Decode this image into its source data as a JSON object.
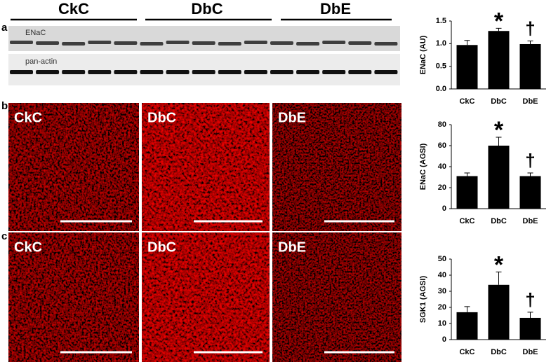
{
  "figure": {
    "panel_labels": [
      "a",
      "b",
      "c"
    ],
    "blot": {
      "groups": [
        "CkC",
        "DbC",
        "DbE"
      ],
      "bands": [
        "ENaC",
        "pan-actin"
      ]
    },
    "micrographs": [
      [
        "CkC",
        "DbC",
        "DbE"
      ],
      [
        "CkC",
        "DbC",
        "DbE"
      ]
    ]
  },
  "chart_data": [
    {
      "type": "bar",
      "y_label": "ENaC (AU)",
      "categories": [
        "CkC",
        "DbC",
        "DbE"
      ],
      "values": [
        0.97,
        1.28,
        0.99
      ],
      "errors": [
        0.1,
        0.06,
        0.07
      ],
      "color": "#000000",
      "ylim": [
        0,
        1.5
      ],
      "yticks": [
        {
          "value": 0,
          "label": "0.0"
        },
        {
          "value": 0.5,
          "label": "0.5"
        },
        {
          "value": 1,
          "label": "1.0"
        },
        {
          "value": 1.5,
          "label": "1.5"
        }
      ],
      "annotations": [
        {
          "category": "DbC",
          "text": "*"
        },
        {
          "category": "DbE",
          "text": "†"
        }
      ]
    },
    {
      "type": "bar",
      "y_label": "ENaC (AGSI)",
      "categories": [
        "CkC",
        "DbC",
        "DbE"
      ],
      "values": [
        31,
        60,
        31
      ],
      "errors": [
        3,
        8,
        3
      ],
      "color": "#000000",
      "ylim": [
        0,
        80
      ],
      "yticks": [
        0,
        20,
        40,
        60,
        80
      ],
      "annotations": [
        {
          "category": "DbC",
          "text": "*"
        },
        {
          "category": "DbE",
          "text": "†"
        }
      ]
    },
    {
      "type": "bar",
      "y_label": "SGK1 (AGSI)",
      "categories": [
        "CkC",
        "DbC",
        "DbE"
      ],
      "values": [
        17,
        34,
        13.5
      ],
      "errors": [
        3.5,
        8,
        3.5
      ],
      "color": "#000000",
      "ylim": [
        0,
        50
      ],
      "yticks": [
        0,
        10,
        20,
        30,
        40,
        50
      ],
      "annotations": [
        {
          "category": "DbC",
          "text": "*"
        },
        {
          "category": "DbE",
          "text": "†"
        }
      ]
    }
  ]
}
